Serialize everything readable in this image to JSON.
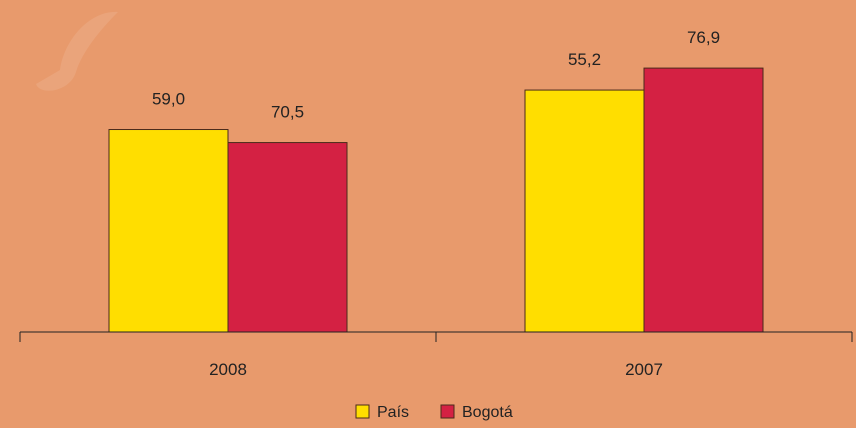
{
  "background": "#e89a6c",
  "chart_data": {
    "type": "bar",
    "categories": [
      "2008",
      "2007"
    ],
    "series": [
      {
        "name": "País",
        "color": "#ffde00",
        "values": [
          59.0,
          70.5
        ]
      },
      {
        "name": "Bogotá",
        "color": "#d42143",
        "values": [
          55.2,
          76.9
        ]
      }
    ],
    "ylim": [
      0,
      88
    ],
    "data_labels": [
      [
        "59,0",
        "70,5"
      ],
      [
        "55,2",
        "76,9"
      ]
    ],
    "grid": false,
    "legend": "bottom-center"
  }
}
